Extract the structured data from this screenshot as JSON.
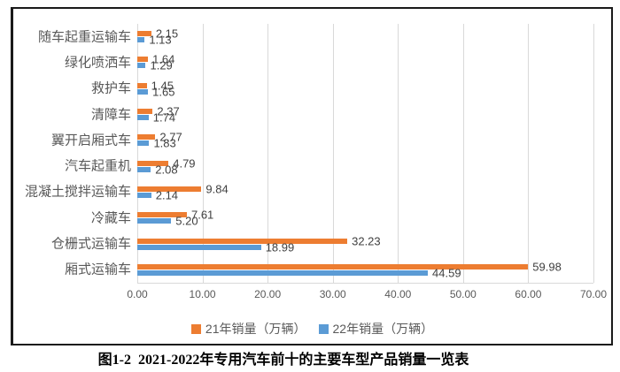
{
  "chart_data": {
    "type": "bar",
    "orientation": "horizontal",
    "title": "",
    "categories": [
      "随车起重运输车",
      "绿化喷洒车",
      "救护车",
      "清障车",
      "翼开启厢式车",
      "汽车起重机",
      "混凝土搅拌运输车",
      "冷藏车",
      "仓栅式运输车",
      "厢式运输车"
    ],
    "series": [
      {
        "name": "21年销量（万辆）",
        "color": "#ED7D31",
        "values": [
          2.15,
          1.64,
          1.45,
          2.37,
          2.77,
          4.79,
          9.84,
          7.61,
          32.23,
          59.98
        ]
      },
      {
        "name": "22年销量（万辆）",
        "color": "#5B9BD5",
        "values": [
          1.13,
          1.29,
          1.65,
          1.74,
          1.83,
          2.08,
          2.14,
          5.2,
          18.99,
          44.59
        ]
      }
    ],
    "x_ticks": [
      "0.00",
      "10.00",
      "20.00",
      "30.00",
      "40.00",
      "50.00",
      "60.00",
      "70.00"
    ],
    "xlim": [
      0,
      70
    ],
    "value_label_decimals": 2,
    "grid": true,
    "legend_position": "bottom"
  },
  "colors": {
    "series_21": "#ED7D31",
    "series_22": "#5B9BD5",
    "gridline": "#d9d9d9",
    "axis_text": "#595959",
    "value_text": "#404040",
    "frame_border": "#1a1a1a"
  },
  "caption": "图1-2  2021-2022年专用汽车前十的主要车型产品销量一览表"
}
